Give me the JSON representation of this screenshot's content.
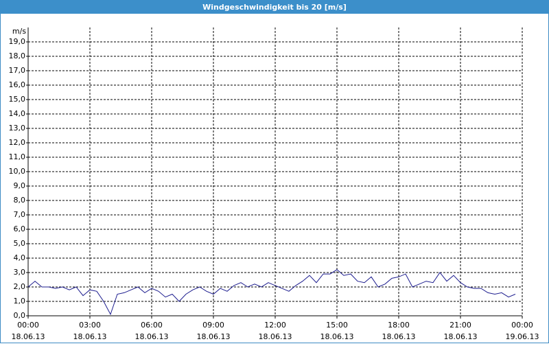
{
  "chart_data": {
    "type": "line",
    "title": "Windgeschwindigkeit bis 20 [m/s]",
    "y_unit": "m/s",
    "x": [
      0,
      20,
      40,
      60,
      80,
      100,
      120,
      140,
      160,
      180,
      200,
      220,
      240,
      260,
      280,
      300,
      320,
      340,
      360,
      380,
      400,
      420,
      440,
      460,
      480,
      500,
      520,
      540,
      560,
      580,
      600,
      620,
      640,
      660,
      680,
      700,
      720,
      740,
      760,
      780,
      800,
      820,
      840,
      860,
      880,
      900,
      920,
      940,
      960,
      980,
      1000,
      1020,
      1040,
      1060,
      1080,
      1100,
      1120,
      1140,
      1160,
      1180,
      1200,
      1220,
      1240,
      1260,
      1280,
      1300,
      1320,
      1340,
      1360,
      1380,
      1400,
      1420
    ],
    "series": [
      {
        "name": "Windgeschwindigkeit",
        "color": "#1c1c8e",
        "values": [
          2.0,
          2.4,
          2.0,
          2.0,
          1.9,
          2.0,
          1.8,
          2.0,
          1.4,
          1.8,
          1.7,
          1.0,
          0.1,
          1.5,
          1.6,
          1.8,
          2.0,
          1.6,
          1.9,
          1.7,
          1.3,
          1.5,
          1.0,
          1.5,
          1.8,
          2.0,
          1.7,
          1.5,
          1.9,
          1.7,
          2.1,
          2.3,
          2.0,
          2.2,
          2.0,
          2.3,
          2.1,
          1.9,
          1.7,
          2.1,
          2.4,
          2.8,
          2.3,
          2.9,
          2.9,
          3.2,
          2.8,
          2.9,
          2.4,
          2.3,
          2.7,
          2.0,
          2.2,
          2.6,
          2.7,
          2.9,
          2.0,
          2.2,
          2.4,
          2.3,
          3.0,
          2.4,
          2.8,
          2.3,
          2.0,
          1.9,
          1.9,
          1.6,
          1.5,
          1.6,
          1.3,
          1.5
        ]
      }
    ],
    "xlim": [
      0,
      1440
    ],
    "xticks": [
      {
        "value": 0,
        "label": "00:00",
        "date": "18.06.13"
      },
      {
        "value": 180,
        "label": "03:00",
        "date": "18.06.13"
      },
      {
        "value": 360,
        "label": "06:00",
        "date": "18.06.13"
      },
      {
        "value": 540,
        "label": "09:00",
        "date": "18.06.13"
      },
      {
        "value": 720,
        "label": "12:00",
        "date": "18.06.13"
      },
      {
        "value": 900,
        "label": "15:00",
        "date": "18.06.13"
      },
      {
        "value": 1080,
        "label": "18:00",
        "date": "18.06.13"
      },
      {
        "value": 1260,
        "label": "21:00",
        "date": "18.06.13"
      },
      {
        "value": 1440,
        "label": "00:00",
        "date": "19.06.13"
      }
    ],
    "ylim": [
      0,
      20
    ],
    "yticks": [
      {
        "value": 0,
        "label": "0,0"
      },
      {
        "value": 1,
        "label": "1,0"
      },
      {
        "value": 2,
        "label": "2,0"
      },
      {
        "value": 3,
        "label": "3,0"
      },
      {
        "value": 4,
        "label": "4,0"
      },
      {
        "value": 5,
        "label": "5,0"
      },
      {
        "value": 6,
        "label": "6,0"
      },
      {
        "value": 7,
        "label": "7,0"
      },
      {
        "value": 8,
        "label": "8,0"
      },
      {
        "value": 9,
        "label": "9,0"
      },
      {
        "value": 10,
        "label": "10,0"
      },
      {
        "value": 11,
        "label": "11,0"
      },
      {
        "value": 12,
        "label": "12,0"
      },
      {
        "value": 13,
        "label": "13,0"
      },
      {
        "value": 14,
        "label": "14,0"
      },
      {
        "value": 15,
        "label": "15,0"
      },
      {
        "value": 16,
        "label": "16,0"
      },
      {
        "value": 17,
        "label": "17,0"
      },
      {
        "value": 18,
        "label": "18,0"
      },
      {
        "value": 19,
        "label": "19,0"
      }
    ],
    "grid": true
  }
}
